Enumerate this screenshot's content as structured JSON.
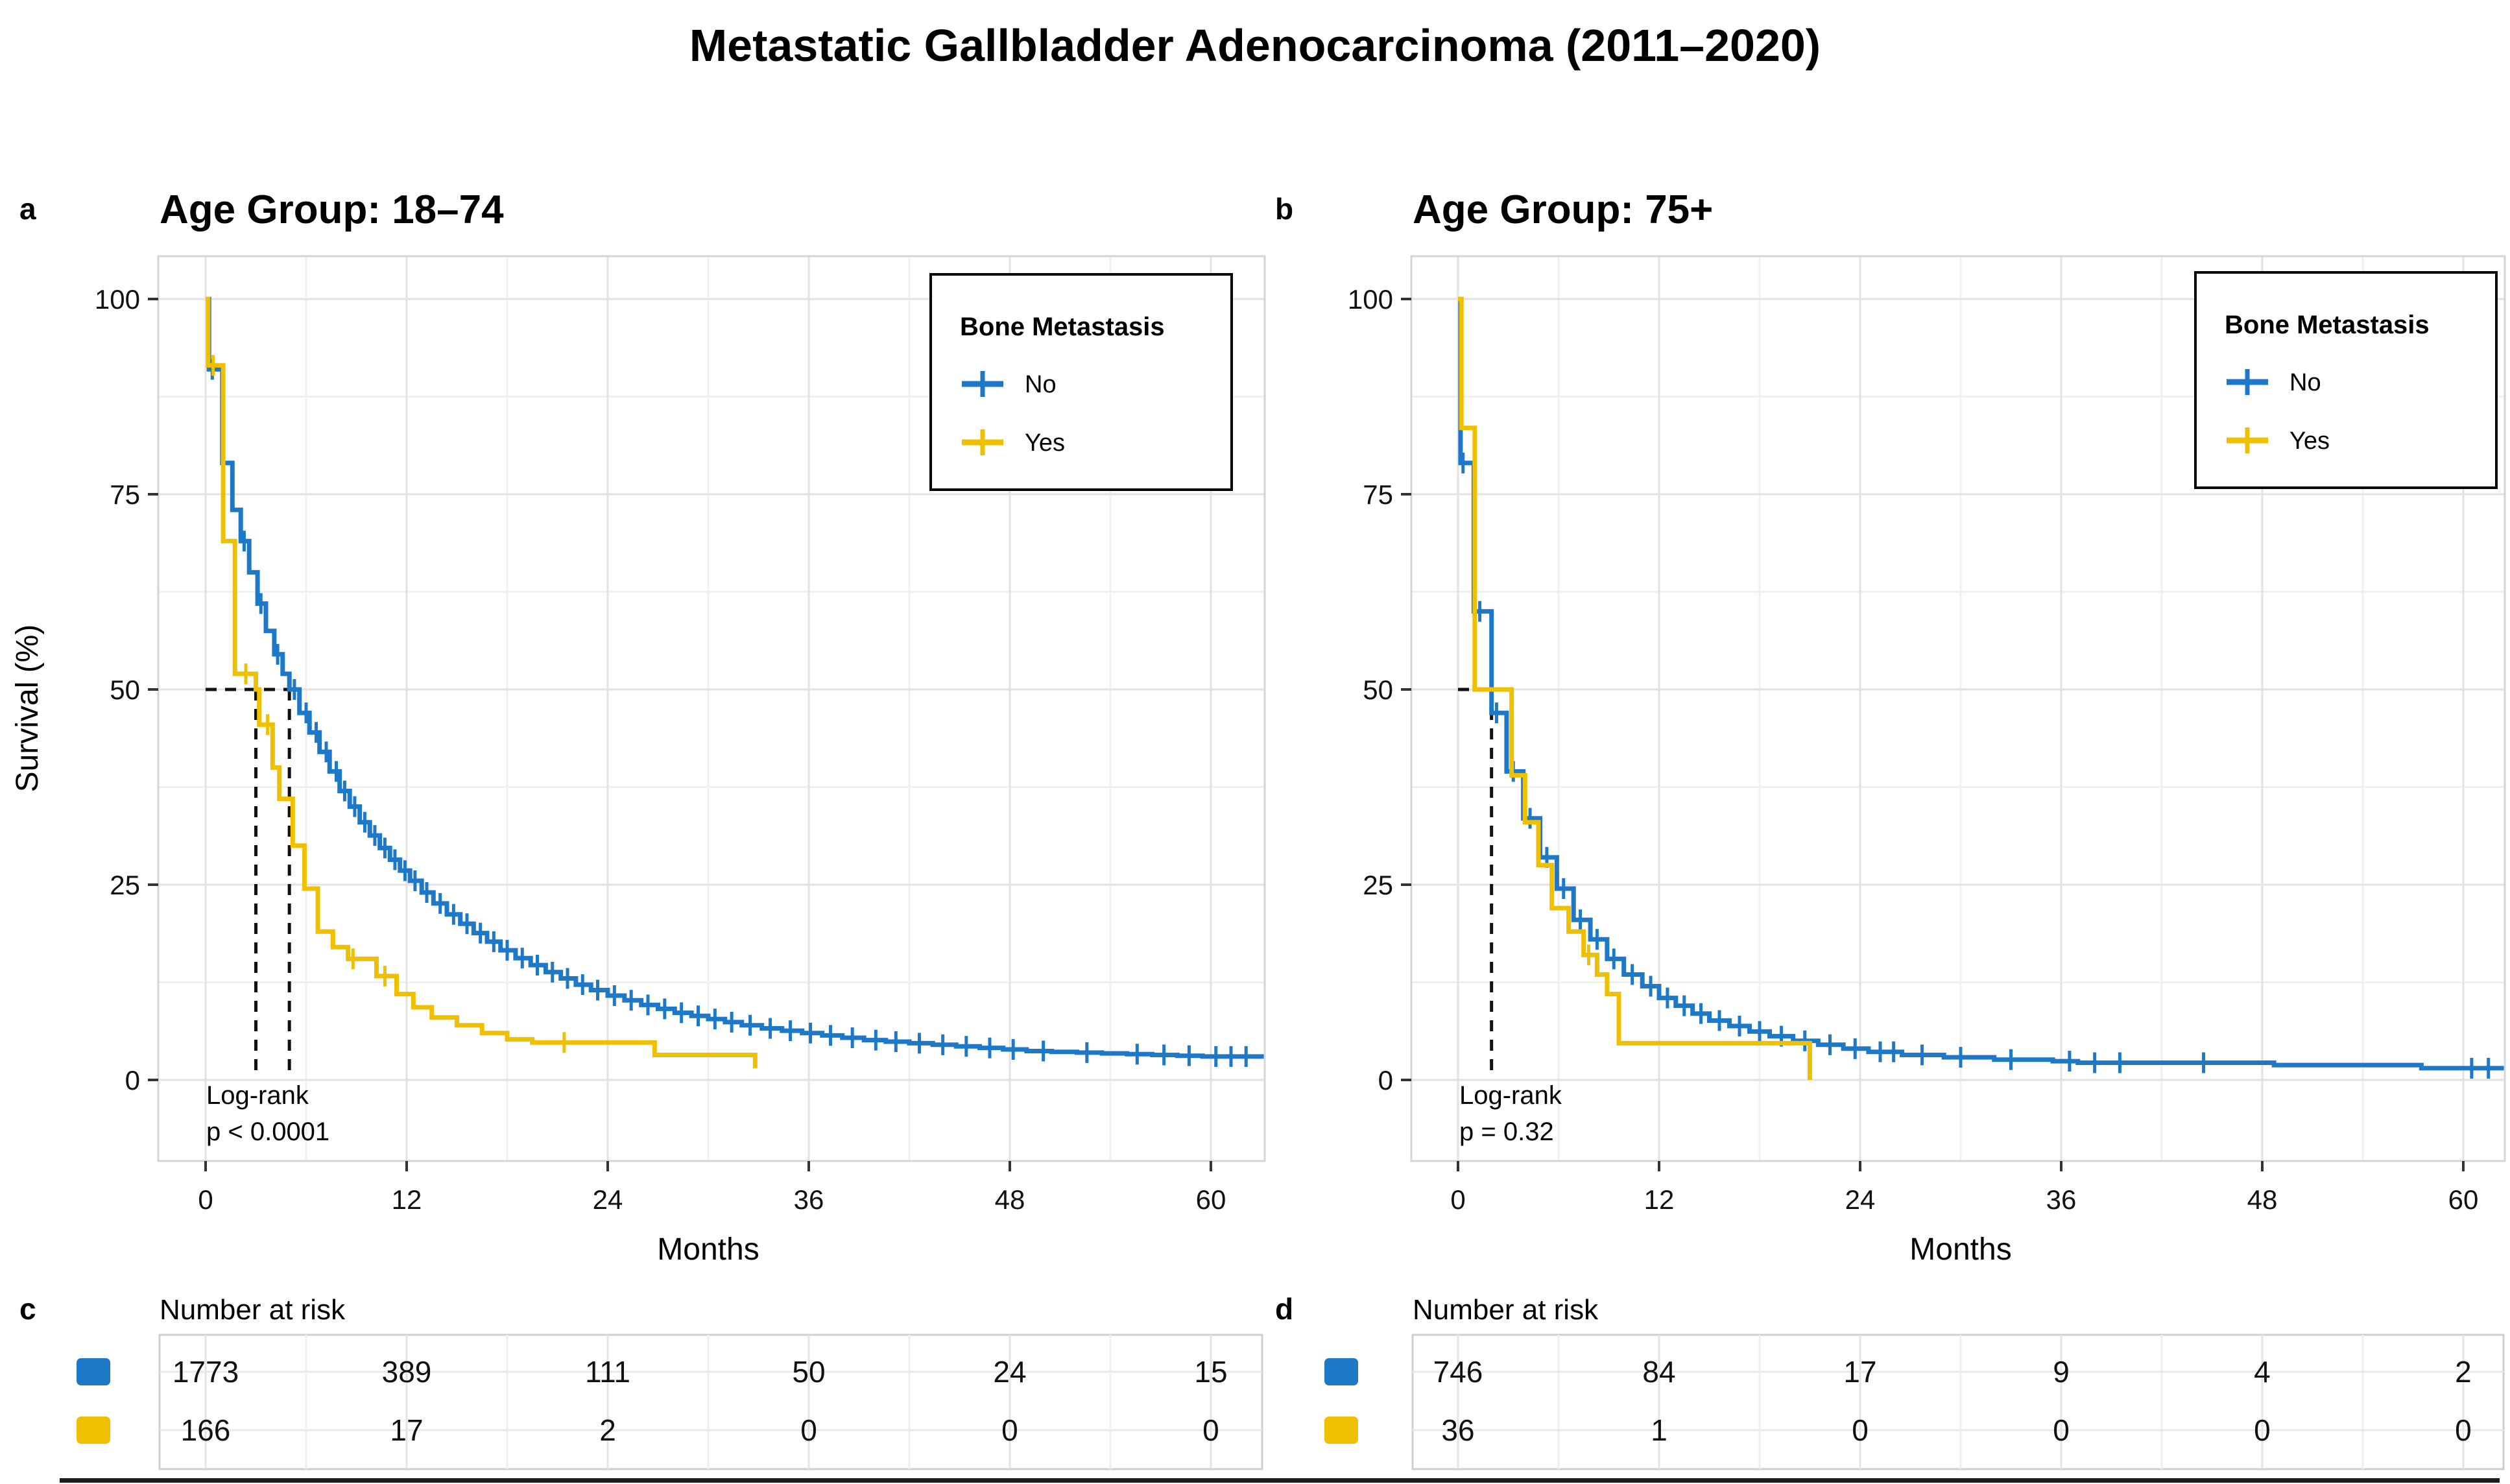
{
  "figure_title": "Metastatic Gallbladder Adenocarcinoma (2011–2020)",
  "chart_data": {
    "type": "km_survival",
    "title": "Metastatic Gallbladder Adenocarcinoma (2011–2020)",
    "xlabel": "Months",
    "ylabel": "Survival (%)",
    "x_ticks": [
      0,
      12,
      24,
      36,
      48,
      60
    ],
    "x_minor": [
      6,
      18,
      30,
      42,
      54
    ],
    "y_ticks": [
      0,
      25,
      50,
      75,
      100
    ],
    "y_minor": [
      12.5,
      37.5,
      62.5,
      87.5
    ],
    "xlim": [
      0,
      63
    ],
    "ylim": [
      0,
      100
    ],
    "series_colors": {
      "no": "#1e78c8",
      "yes": "#efc000"
    },
    "legend_title": "Bone Metastasis",
    "panels": [
      {
        "id": "a",
        "label": "a",
        "title": "Age Group: 18–74",
        "legend": {
          "title": "Bone Metastasis",
          "items": [
            "No",
            "Yes"
          ]
        },
        "annotation": {
          "line1": "Log-rank",
          "line2": "p < 0.0001"
        },
        "median_pct": 50,
        "median_months": [
          3.0,
          5.0
        ],
        "series": [
          {
            "name": "No",
            "color": "#1e78c8",
            "n": 1773,
            "extend_to": 63.2,
            "points": [
              [
                0,
                100
              ],
              [
                0.2,
                91
              ],
              [
                1,
                79
              ],
              [
                1.6,
                73
              ],
              [
                2.1,
                69
              ],
              [
                2.6,
                65
              ],
              [
                3.1,
                61
              ],
              [
                3.6,
                57.5
              ],
              [
                4.1,
                54.5
              ],
              [
                4.6,
                52
              ],
              [
                5,
                50
              ],
              [
                5.6,
                47
              ],
              [
                6.2,
                44.5
              ],
              [
                6.8,
                42
              ],
              [
                7.4,
                39.5
              ],
              [
                8,
                37
              ],
              [
                8.6,
                35
              ],
              [
                9.2,
                33
              ],
              [
                9.8,
                31.3
              ],
              [
                10.4,
                29.7
              ],
              [
                11,
                28.2
              ],
              [
                11.6,
                26.8
              ],
              [
                12.2,
                25.5
              ],
              [
                12.9,
                24
              ],
              [
                13.6,
                22.6
              ],
              [
                14.4,
                21.2
              ],
              [
                15.2,
                20
              ],
              [
                16,
                18.8
              ],
              [
                16.8,
                17.7
              ],
              [
                17.6,
                16.6
              ],
              [
                18.5,
                15.6
              ],
              [
                19.4,
                14.7
              ],
              [
                20.3,
                13.8
              ],
              [
                21.2,
                13
              ],
              [
                22.1,
                12.2
              ],
              [
                23,
                11.5
              ],
              [
                24,
                10.8
              ],
              [
                25,
                10.2
              ],
              [
                26,
                9.6
              ],
              [
                27,
                9.1
              ],
              [
                28,
                8.6
              ],
              [
                29,
                8.2
              ],
              [
                30,
                7.8
              ],
              [
                31,
                7.4
              ],
              [
                32,
                7
              ],
              [
                33.2,
                6.6
              ],
              [
                34.4,
                6.3
              ],
              [
                35.6,
                6
              ],
              [
                36.8,
                5.7
              ],
              [
                38,
                5.4
              ],
              [
                39.3,
                5.1
              ],
              [
                40.6,
                4.9
              ],
              [
                42,
                4.7
              ],
              [
                43.4,
                4.5
              ],
              [
                44.8,
                4.3
              ],
              [
                46.2,
                4.1
              ],
              [
                47.6,
                3.9
              ],
              [
                49,
                3.7
              ],
              [
                50.5,
                3.6
              ],
              [
                52,
                3.5
              ],
              [
                53.5,
                3.4
              ],
              [
                55,
                3.3
              ],
              [
                56.5,
                3.2
              ],
              [
                58,
                3.1
              ],
              [
                59.5,
                3
              ],
              [
                61,
                3
              ]
            ],
            "censors": [
              0.4,
              2.3,
              3.3,
              4.3,
              5.3,
              6,
              6.6,
              7.2,
              7.8,
              8.3,
              8.9,
              9.5,
              10.1,
              10.7,
              11.3,
              11.9,
              12.5,
              13.2,
              14,
              14.8,
              15.6,
              16.4,
              17.2,
              18,
              18.9,
              19.8,
              20.7,
              21.6,
              22.5,
              23.4,
              24.4,
              25.4,
              26.4,
              27.4,
              28.4,
              29.4,
              30.4,
              31.4,
              32.5,
              33.7,
              34.9,
              36.1,
              37.3,
              38.6,
              40,
              41.2,
              42.6,
              44,
              45.4,
              46.8,
              48.2,
              50,
              52.6,
              55.6,
              57.2,
              58.7,
              60.3,
              61.2,
              62.1
            ]
          },
          {
            "name": "Yes",
            "color": "#efc000",
            "n": 166,
            "extend_to": null,
            "points": [
              [
                0,
                100
              ],
              [
                0.15,
                91.5
              ],
              [
                1.05,
                69
              ],
              [
                1.75,
                52
              ],
              [
                3,
                50
              ],
              [
                3.2,
                45.5
              ],
              [
                4,
                40
              ],
              [
                4.4,
                36
              ],
              [
                5.2,
                30
              ],
              [
                5.9,
                24.5
              ],
              [
                6.7,
                19
              ],
              [
                7.6,
                17
              ],
              [
                8.5,
                15.5
              ],
              [
                10.2,
                13.3
              ],
              [
                11.4,
                11
              ],
              [
                12.4,
                9.3
              ],
              [
                13.5,
                8
              ],
              [
                15,
                7
              ],
              [
                16.5,
                6
              ],
              [
                18,
                5.2
              ],
              [
                19.5,
                4.8
              ],
              [
                26.8,
                3.2
              ],
              [
                32.8,
                1.5
              ]
            ],
            "censors": [
              0.45,
              2.4,
              3.7,
              8.8,
              10.7,
              21.4
            ]
          }
        ]
      },
      {
        "id": "b",
        "label": "b",
        "title": "Age Group: 75+",
        "legend": {
          "title": "Bone Metastasis",
          "items": [
            "No",
            "Yes"
          ]
        },
        "annotation": {
          "line1": "Log-rank",
          "line2": "p = 0.32"
        },
        "median_pct": 50,
        "median_months": [
          2.0
        ],
        "series": [
          {
            "name": "No",
            "color": "#1e78c8",
            "n": 746,
            "extend_to": 62.5,
            "points": [
              [
                0,
                100
              ],
              [
                0.15,
                79
              ],
              [
                0.95,
                60
              ],
              [
                2,
                47
              ],
              [
                2.9,
                39.5
              ],
              [
                3.9,
                33.5
              ],
              [
                4.9,
                28.5
              ],
              [
                5.9,
                24.5
              ],
              [
                6.9,
                20.5
              ],
              [
                7.9,
                18
              ],
              [
                8.9,
                15.5
              ],
              [
                9.9,
                13.5
              ],
              [
                11,
                12
              ],
              [
                12,
                10.5
              ],
              [
                13,
                9.5
              ],
              [
                14,
                8.5
              ],
              [
                15,
                7.6
              ],
              [
                16.2,
                6.9
              ],
              [
                17.4,
                6.2
              ],
              [
                18.6,
                5.6
              ],
              [
                20,
                5
              ],
              [
                21.5,
                4.5
              ],
              [
                23,
                4
              ],
              [
                24.5,
                3.6
              ],
              [
                26.5,
                3.2
              ],
              [
                29,
                2.9
              ],
              [
                32,
                2.6
              ],
              [
                35.5,
                2.4
              ],
              [
                37,
                2.2
              ],
              [
                48.7,
                1.9
              ],
              [
                57.5,
                1.5
              ]
            ],
            "censors": [
              0.3,
              1.3,
              2.3,
              3.3,
              4.3,
              5.3,
              6.3,
              7.3,
              8.3,
              9.3,
              10.4,
              11.5,
              12.5,
              13.5,
              14.5,
              15.6,
              16.8,
              18,
              19.3,
              20.7,
              22.2,
              23.7,
              25.2,
              26,
              27.7,
              30,
              33,
              36.5,
              38,
              39.5,
              44.5,
              60.5,
              61.5
            ]
          },
          {
            "name": "Yes",
            "color": "#efc000",
            "n": 36,
            "extend_to": null,
            "points": [
              [
                0,
                100
              ],
              [
                0.2,
                83.5
              ],
              [
                1,
                50
              ],
              [
                3.2,
                39
              ],
              [
                4,
                33
              ],
              [
                4.8,
                27.5
              ],
              [
                5.6,
                22
              ],
              [
                6.6,
                19
              ],
              [
                7.5,
                16
              ],
              [
                8.3,
                13.5
              ],
              [
                8.9,
                11
              ],
              [
                9.6,
                4.7
              ],
              [
                21,
                0
              ]
            ],
            "censors": [
              7.8
            ]
          }
        ]
      }
    ],
    "risk_tables": [
      {
        "id": "c",
        "label": "c",
        "title": "Number at risk",
        "times": [
          0,
          12,
          24,
          36,
          48,
          60
        ],
        "rows": [
          {
            "name": "No",
            "color": "#1e78c8",
            "values": [
              1773,
              389,
              111,
              50,
              24,
              15
            ]
          },
          {
            "name": "Yes",
            "color": "#efc000",
            "values": [
              166,
              17,
              2,
              0,
              0,
              0
            ]
          }
        ]
      },
      {
        "id": "d",
        "label": "d",
        "title": "Number at risk",
        "times": [
          0,
          12,
          24,
          36,
          48,
          60
        ],
        "rows": [
          {
            "name": "No",
            "color": "#1e78c8",
            "values": [
              746,
              84,
              17,
              9,
              4,
              2
            ]
          },
          {
            "name": "Yes",
            "color": "#efc000",
            "values": [
              36,
              1,
              0,
              0,
              0,
              0
            ]
          }
        ]
      }
    ]
  }
}
